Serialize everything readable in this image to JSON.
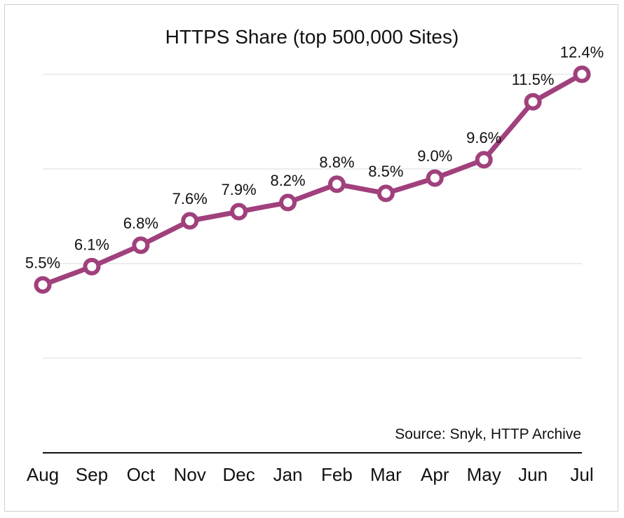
{
  "chart_data": {
    "type": "line",
    "title": "HTTPS Share (top 500,000 Sites)",
    "categories": [
      "Aug",
      "Sep",
      "Oct",
      "Nov",
      "Dec",
      "Jan",
      "Feb",
      "Mar",
      "Apr",
      "May",
      "Jun",
      "Jul"
    ],
    "values": [
      5.5,
      6.1,
      6.8,
      7.6,
      7.9,
      8.2,
      8.8,
      8.5,
      9.0,
      9.6,
      11.5,
      12.4
    ],
    "labels": [
      "5.5%",
      "6.1%",
      "6.8%",
      "7.6%",
      "7.9%",
      "8.2%",
      "8.8%",
      "8.5%",
      "9.0%",
      "9.6%",
      "11.5%",
      "12.4%"
    ],
    "xlabel": "",
    "ylabel": "",
    "ylim": [
      0,
      12.4
    ],
    "grid": true,
    "source": "Source: Snyk, HTTP Archive",
    "line_color": "#a0407c"
  }
}
